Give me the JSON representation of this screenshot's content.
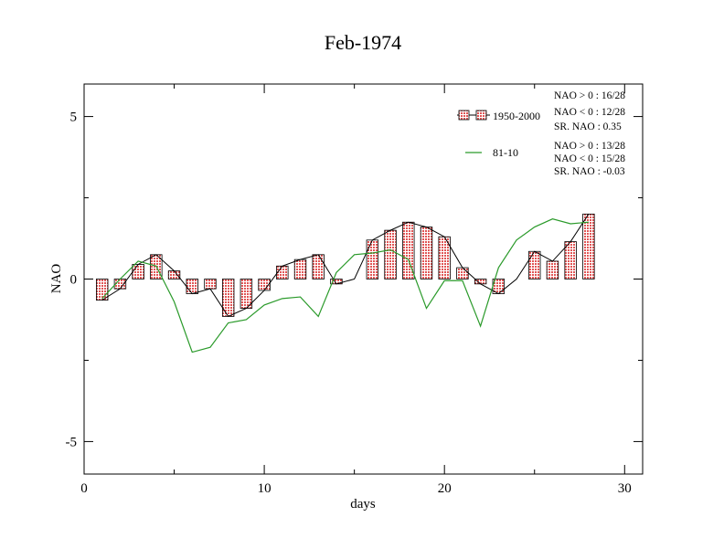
{
  "chart_data": {
    "type": "bar",
    "title": "Feb-1974",
    "xlabel": "days",
    "ylabel": "NAO",
    "xlim": [
      0,
      31
    ],
    "ylim": [
      -6,
      6
    ],
    "xticks": [
      0,
      10,
      20,
      30
    ],
    "xtick_labels": [
      "0",
      "10",
      "20",
      "30"
    ],
    "yticks": [
      -5,
      0,
      5
    ],
    "ytick_labels": [
      "-5",
      "0",
      "5"
    ],
    "grid": false,
    "x": [
      1,
      2,
      3,
      4,
      5,
      6,
      7,
      8,
      9,
      10,
      11,
      12,
      13,
      14,
      15,
      16,
      17,
      18,
      19,
      20,
      21,
      22,
      23,
      24,
      25,
      26,
      27,
      28
    ],
    "series": [
      {
        "name": "1950-2000",
        "kind": "bar+line",
        "color": "#e05555",
        "values": [
          -0.65,
          -0.3,
          0.45,
          0.75,
          0.25,
          -0.45,
          -0.3,
          -1.15,
          -0.9,
          -0.35,
          0.4,
          0.6,
          0.75,
          -0.15,
          0.0,
          1.2,
          1.5,
          1.75,
          1.6,
          1.3,
          0.35,
          -0.15,
          -0.45,
          0.0,
          0.85,
          0.55,
          1.15,
          2.0
        ]
      },
      {
        "name": "81-10",
        "kind": "line",
        "color": "#2a9a2a",
        "values": [
          -0.6,
          0.0,
          0.55,
          0.4,
          -0.7,
          -2.25,
          -2.1,
          -1.35,
          -1.25,
          -0.8,
          -0.6,
          -0.55,
          -1.15,
          0.2,
          0.75,
          0.8,
          0.9,
          0.6,
          -0.9,
          -0.05,
          -0.05,
          -1.45,
          0.35,
          1.2,
          1.6,
          1.85,
          1.7,
          1.75
        ]
      }
    ],
    "legend": {
      "placement": "top-right",
      "stats_1950_2000": [
        "NAO > 0 : 16/28",
        "NAO < 0 : 12/28",
        "SR. NAO : 0.35"
      ],
      "stats_81_10": [
        "NAO > 0 : 13/28",
        "NAO < 0 : 15/28",
        "SR. NAO : -0.03"
      ]
    }
  }
}
